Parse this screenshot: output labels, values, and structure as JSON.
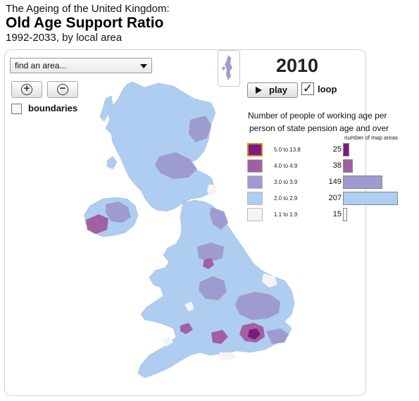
{
  "header": {
    "title_top": "The Ageing of the United Kingdom:",
    "title_main": "Old Age Support Ratio",
    "subtitle": "1992-2033, by local area"
  },
  "controls": {
    "find_placeholder": "find an area...",
    "boundaries_label": "boundaries",
    "year": "2010",
    "play_label": "play",
    "loop_label": "loop",
    "loop_check": "✓"
  },
  "legend": {
    "title_line1": "Number of people of working age per",
    "title_line2": "person of state pension age and over",
    "areas_header": "number of map areas",
    "max_count": 207,
    "classes": [
      {
        "range": "5.0 to 13.8",
        "count": 25,
        "color": "#7b1a83"
      },
      {
        "range": "4.0 to 4.9",
        "count": 38,
        "color": "#9f61a2"
      },
      {
        "range": "3.0 to 3.9",
        "count": 149,
        "color": "#9d9bcf"
      },
      {
        "range": "2.0 to 2.9",
        "count": 207,
        "color": "#aecdf1"
      },
      {
        "range": "1.1 to 1.9",
        "count": 15,
        "color": "#f4f4f4"
      }
    ]
  },
  "icons": {
    "zoom_in": "zoom-in-icon",
    "zoom_out": "zoom-out-icon",
    "dropdown": "chevron-down-icon",
    "play": "play-icon"
  }
}
